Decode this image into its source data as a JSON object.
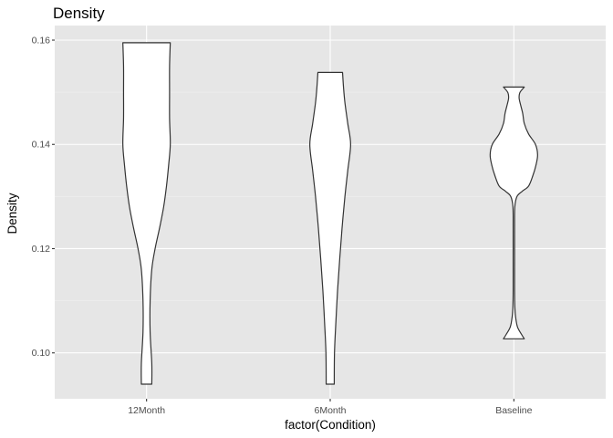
{
  "chart_data": {
    "type": "violin",
    "title": "Density",
    "xlabel": "factor(Condition)",
    "ylabel": "Density",
    "categories": [
      "12Month",
      "6Month",
      "Baseline"
    ],
    "ylim": [
      0.0912,
      0.1628
    ],
    "yticks": [
      0.1,
      0.12,
      0.14,
      0.16
    ],
    "ytick_labels": [
      "0.10",
      "0.12",
      "0.14",
      "0.16"
    ],
    "grid": true,
    "panel_background": "#e6e6e6",
    "line_color": "#333333",
    "fill_color": "#ffffff",
    "violins": [
      {
        "category": "12Month",
        "min": 0.094,
        "max": 0.1595,
        "density_profile": [
          [
            0.094,
            0.22
          ],
          [
            0.098,
            0.22
          ],
          [
            0.104,
            0.15
          ],
          [
            0.11,
            0.15
          ],
          [
            0.116,
            0.22
          ],
          [
            0.12,
            0.36
          ],
          [
            0.124,
            0.55
          ],
          [
            0.128,
            0.72
          ],
          [
            0.132,
            0.84
          ],
          [
            0.136,
            0.93
          ],
          [
            0.14,
            1.0
          ],
          [
            0.145,
            0.97
          ],
          [
            0.15,
            0.97
          ],
          [
            0.155,
            0.97
          ],
          [
            0.1595,
            1.0
          ]
        ]
      },
      {
        "category": "6Month",
        "min": 0.094,
        "max": 0.1538,
        "density_profile": [
          [
            0.094,
            0.17
          ],
          [
            0.1,
            0.18
          ],
          [
            0.106,
            0.24
          ],
          [
            0.112,
            0.31
          ],
          [
            0.118,
            0.4
          ],
          [
            0.124,
            0.5
          ],
          [
            0.13,
            0.62
          ],
          [
            0.135,
            0.74
          ],
          [
            0.14,
            0.86
          ],
          [
            0.144,
            0.74
          ],
          [
            0.148,
            0.62
          ],
          [
            0.151,
            0.56
          ],
          [
            0.1538,
            0.52
          ]
        ]
      },
      {
        "category": "Baseline",
        "min": 0.1027,
        "max": 0.151,
        "density_profile": [
          [
            0.1027,
            0.44
          ],
          [
            0.1035,
            0.33
          ],
          [
            0.105,
            0.15
          ],
          [
            0.107,
            0.07
          ],
          [
            0.109,
            0.04
          ],
          [
            0.112,
            0.03
          ],
          [
            0.118,
            0.03
          ],
          [
            0.124,
            0.03
          ],
          [
            0.128,
            0.04
          ],
          [
            0.13,
            0.13
          ],
          [
            0.131,
            0.35
          ],
          [
            0.132,
            0.62
          ],
          [
            0.134,
            0.8
          ],
          [
            0.136,
            0.93
          ],
          [
            0.138,
            1.0
          ],
          [
            0.14,
            0.91
          ],
          [
            0.142,
            0.62
          ],
          [
            0.144,
            0.44
          ],
          [
            0.146,
            0.37
          ],
          [
            0.148,
            0.26
          ],
          [
            0.149,
            0.22
          ],
          [
            0.15,
            0.26
          ],
          [
            0.151,
            0.44
          ]
        ]
      }
    ]
  }
}
